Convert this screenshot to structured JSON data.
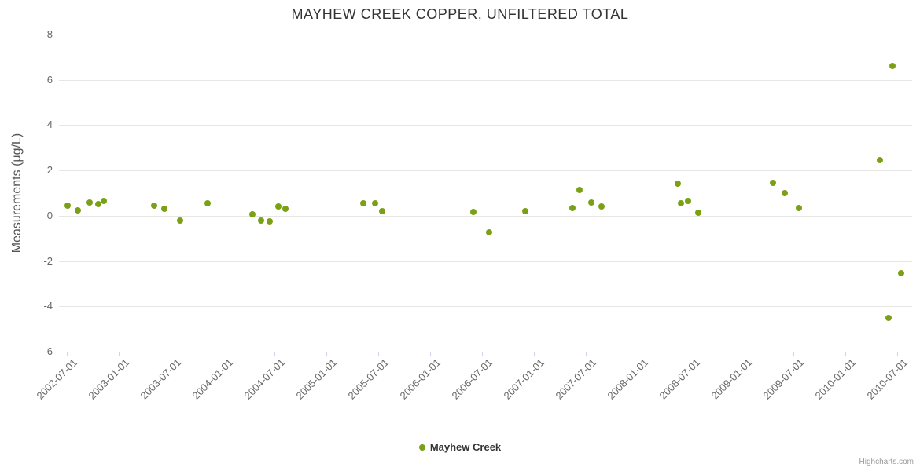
{
  "chart_data": {
    "type": "scatter",
    "title": "MAYHEW CREEK COPPER, UNFILTERED TOTAL",
    "xlabel": "",
    "ylabel": "Measurements (μg/L)",
    "ylim": [
      -6,
      8
    ],
    "y_ticks": [
      8,
      6,
      4,
      2,
      0,
      -2,
      -4,
      -6
    ],
    "x_range_decimal_years": [
      2002.424,
      2010.644
    ],
    "x_ticks": [
      "2002-07-01",
      "2003-01-01",
      "2003-07-01",
      "2004-01-01",
      "2004-07-01",
      "2005-01-01",
      "2005-07-01",
      "2006-01-01",
      "2006-07-01",
      "2007-01-01",
      "2007-07-01",
      "2008-01-01",
      "2008-07-01",
      "2009-01-01",
      "2009-07-01",
      "2010-01-01",
      "2010-07-01"
    ],
    "x_tick_rotation": -45,
    "grid": "horizontal",
    "legend_position": "bottom-center",
    "marker": "circle",
    "credits": "Highcharts.com",
    "series": [
      {
        "name": "Mayhew Creek",
        "color": "#7AA116",
        "points": [
          {
            "date": "2002-07-05",
            "value": 0.45
          },
          {
            "date": "2002-08-10",
            "value": 0.25
          },
          {
            "date": "2002-09-20",
            "value": 0.6
          },
          {
            "date": "2002-10-20",
            "value": 0.5
          },
          {
            "date": "2002-11-10",
            "value": 0.65
          },
          {
            "date": "2003-05-05",
            "value": 0.45
          },
          {
            "date": "2003-06-10",
            "value": 0.3
          },
          {
            "date": "2003-08-05",
            "value": -0.2
          },
          {
            "date": "2003-11-10",
            "value": 0.55
          },
          {
            "date": "2004-04-15",
            "value": 0.05
          },
          {
            "date": "2004-05-15",
            "value": -0.2
          },
          {
            "date": "2004-06-15",
            "value": -0.25
          },
          {
            "date": "2004-07-15",
            "value": 0.4
          },
          {
            "date": "2004-08-10",
            "value": 0.3
          },
          {
            "date": "2005-05-10",
            "value": 0.55
          },
          {
            "date": "2005-06-20",
            "value": 0.55
          },
          {
            "date": "2005-07-15",
            "value": 0.2
          },
          {
            "date": "2006-06-01",
            "value": 0.18
          },
          {
            "date": "2006-07-25",
            "value": -0.72
          },
          {
            "date": "2006-12-01",
            "value": 0.22
          },
          {
            "date": "2007-05-15",
            "value": 0.35
          },
          {
            "date": "2007-06-10",
            "value": 1.15
          },
          {
            "date": "2007-07-20",
            "value": 0.6
          },
          {
            "date": "2007-08-25",
            "value": 0.42
          },
          {
            "date": "2008-05-20",
            "value": 1.4
          },
          {
            "date": "2008-06-01",
            "value": 0.55
          },
          {
            "date": "2008-06-25",
            "value": 0.65
          },
          {
            "date": "2008-08-01",
            "value": 0.15
          },
          {
            "date": "2009-04-20",
            "value": 1.45
          },
          {
            "date": "2009-06-01",
            "value": 1.0
          },
          {
            "date": "2009-07-20",
            "value": 0.35
          },
          {
            "date": "2010-05-01",
            "value": 2.45
          },
          {
            "date": "2010-06-01",
            "value": -4.5
          },
          {
            "date": "2010-06-15",
            "value": 6.6
          },
          {
            "date": "2010-07-15",
            "value": -2.55
          }
        ]
      }
    ]
  }
}
